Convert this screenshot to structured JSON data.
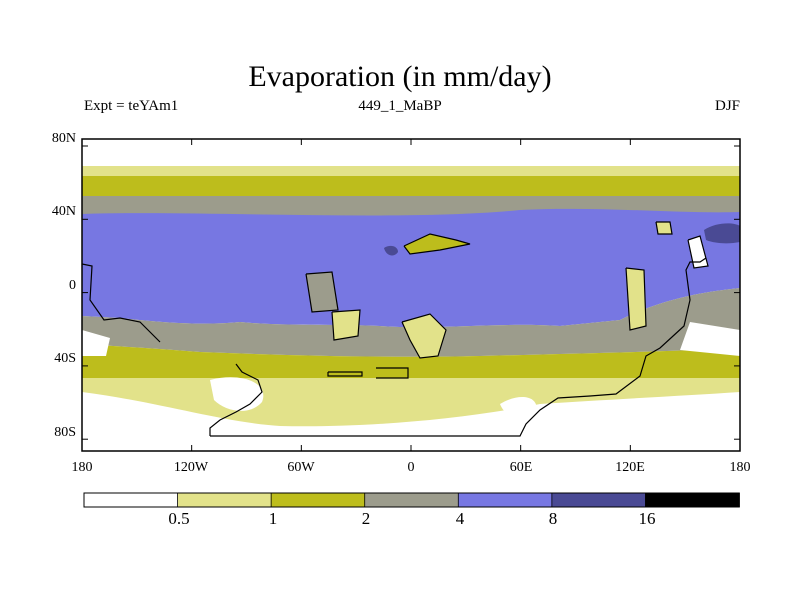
{
  "title": "Evaporation (in mm/day)",
  "subtitle_left": "Expt = teYAm1",
  "subtitle_center": "449_1_MaBP",
  "subtitle_right": "DJF",
  "map": {
    "lat_ticks": [
      "80N",
      "40N",
      "0",
      "40S",
      "80S"
    ],
    "lon_ticks": [
      "180",
      "120W",
      "60W",
      "0",
      "60E",
      "120E",
      "180"
    ]
  },
  "colorbar": {
    "colors": [
      "#ffffff",
      "#e2e28a",
      "#bdbd1c",
      "#9c9c8c",
      "#7777e2",
      "#4a4a94",
      "#000000"
    ],
    "labels": [
      "0.5",
      "1",
      "2",
      "4",
      "8",
      "16"
    ]
  }
}
